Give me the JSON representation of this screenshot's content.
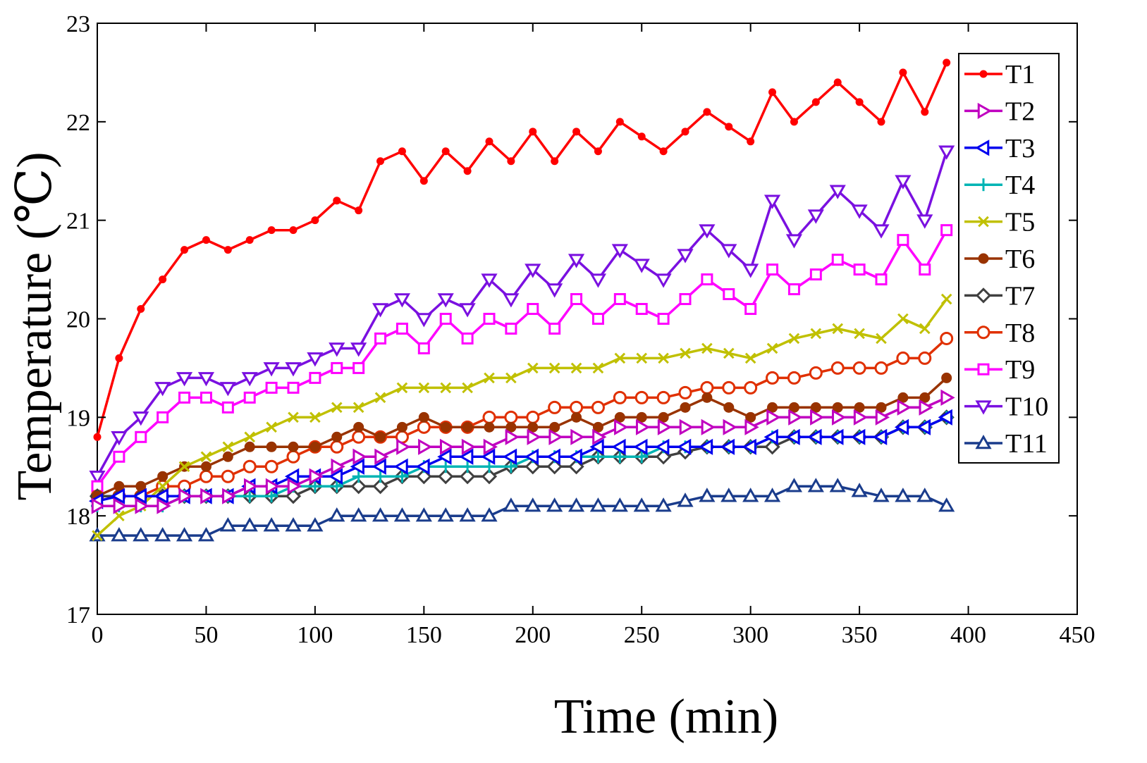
{
  "chart_data": {
    "type": "line",
    "title": "",
    "xlabel": "Time (min)",
    "ylabel": "Temperature (℃)",
    "xlim": [
      0,
      450
    ],
    "ylim": [
      17,
      23
    ],
    "x_ticks": [
      "0",
      "50",
      "100",
      "150",
      "200",
      "250",
      "300",
      "350",
      "400",
      "450"
    ],
    "y_ticks": [
      "17",
      "18",
      "19",
      "20",
      "21",
      "22",
      "23"
    ],
    "grid": false,
    "legend_position": "top-right",
    "x": [
      0,
      10,
      20,
      30,
      40,
      50,
      60,
      70,
      80,
      90,
      100,
      110,
      120,
      130,
      140,
      150,
      160,
      170,
      180,
      190,
      200,
      210,
      220,
      230,
      240,
      250,
      260,
      270,
      280,
      290,
      300,
      310,
      320,
      330,
      340,
      350,
      360,
      370,
      380,
      390
    ],
    "series": [
      {
        "name": "T1",
        "color": "#ff0000",
        "marker": "dot",
        "values": [
          18.8,
          19.6,
          20.1,
          20.4,
          20.7,
          20.8,
          20.7,
          20.8,
          20.9,
          20.9,
          21.0,
          21.2,
          21.1,
          21.6,
          21.7,
          21.4,
          21.7,
          21.5,
          21.8,
          21.6,
          21.9,
          21.6,
          21.9,
          21.7,
          22.0,
          21.85,
          21.7,
          21.9,
          22.1,
          21.95,
          21.8,
          22.3,
          22.0,
          22.2,
          22.4,
          22.2,
          22.0,
          22.5,
          22.1,
          22.6
        ]
      },
      {
        "name": "T2",
        "color": "#c000c0",
        "marker": "triangle-right",
        "values": [
          18.1,
          18.1,
          18.1,
          18.1,
          18.2,
          18.2,
          18.2,
          18.3,
          18.3,
          18.3,
          18.4,
          18.5,
          18.6,
          18.6,
          18.7,
          18.7,
          18.7,
          18.7,
          18.7,
          18.8,
          18.8,
          18.8,
          18.8,
          18.8,
          18.9,
          18.9,
          18.9,
          18.9,
          18.9,
          18.9,
          18.9,
          19.0,
          19.0,
          19.0,
          19.0,
          19.0,
          19.0,
          19.1,
          19.1,
          19.2
        ]
      },
      {
        "name": "T3",
        "color": "#0000ee",
        "marker": "triangle-left",
        "values": [
          18.15,
          18.2,
          18.2,
          18.2,
          18.2,
          18.2,
          18.2,
          18.3,
          18.3,
          18.4,
          18.4,
          18.4,
          18.5,
          18.5,
          18.5,
          18.5,
          18.6,
          18.6,
          18.6,
          18.6,
          18.6,
          18.6,
          18.6,
          18.7,
          18.7,
          18.7,
          18.7,
          18.7,
          18.7,
          18.7,
          18.7,
          18.8,
          18.8,
          18.8,
          18.8,
          18.8,
          18.8,
          18.9,
          18.9,
          19.0
        ]
      },
      {
        "name": "T4",
        "color": "#00b4b4",
        "marker": "plus",
        "values": [
          18.1,
          18.1,
          18.1,
          18.1,
          18.2,
          18.2,
          18.2,
          18.2,
          18.2,
          18.3,
          18.3,
          18.3,
          18.4,
          18.4,
          18.4,
          18.5,
          18.5,
          18.5,
          18.5,
          18.5,
          18.6,
          18.6,
          18.6,
          18.6,
          18.6,
          18.6,
          18.7,
          18.7,
          18.7,
          18.7,
          18.7,
          18.8,
          18.8,
          18.8,
          18.8,
          18.8,
          18.8,
          18.9,
          18.9,
          19.0
        ]
      },
      {
        "name": "T5",
        "color": "#c0c000",
        "marker": "x",
        "values": [
          17.8,
          18.0,
          18.1,
          18.3,
          18.5,
          18.6,
          18.7,
          18.8,
          18.9,
          19.0,
          19.0,
          19.1,
          19.1,
          19.2,
          19.3,
          19.3,
          19.3,
          19.3,
          19.4,
          19.4,
          19.5,
          19.5,
          19.5,
          19.5,
          19.6,
          19.6,
          19.6,
          19.65,
          19.7,
          19.65,
          19.6,
          19.7,
          19.8,
          19.85,
          19.9,
          19.85,
          19.8,
          20.0,
          19.9,
          20.2
        ]
      },
      {
        "name": "T6",
        "color": "#993300",
        "marker": "dot-large",
        "values": [
          18.2,
          18.3,
          18.3,
          18.4,
          18.5,
          18.5,
          18.6,
          18.7,
          18.7,
          18.7,
          18.7,
          18.8,
          18.9,
          18.8,
          18.9,
          19.0,
          18.9,
          18.9,
          18.9,
          18.9,
          18.9,
          18.9,
          19.0,
          18.9,
          19.0,
          19.0,
          19.0,
          19.1,
          19.2,
          19.1,
          19.0,
          19.1,
          19.1,
          19.1,
          19.1,
          19.1,
          19.1,
          19.2,
          19.2,
          19.4
        ]
      },
      {
        "name": "T7",
        "color": "#404040",
        "marker": "diamond",
        "values": [
          18.2,
          18.2,
          18.2,
          18.2,
          18.2,
          18.2,
          18.2,
          18.2,
          18.2,
          18.2,
          18.3,
          18.3,
          18.3,
          18.3,
          18.4,
          18.4,
          18.4,
          18.4,
          18.4,
          18.5,
          18.5,
          18.5,
          18.5,
          18.6,
          18.6,
          18.6,
          18.6,
          18.65,
          18.7,
          18.7,
          18.7,
          18.7,
          18.8,
          18.8,
          18.8,
          18.8,
          18.8,
          18.9,
          18.9,
          19.0
        ]
      },
      {
        "name": "T8",
        "color": "#e03000",
        "marker": "circle",
        "values": [
          18.2,
          18.2,
          18.2,
          18.3,
          18.3,
          18.4,
          18.4,
          18.5,
          18.5,
          18.6,
          18.7,
          18.7,
          18.8,
          18.8,
          18.8,
          18.9,
          18.9,
          18.9,
          19.0,
          19.0,
          19.0,
          19.1,
          19.1,
          19.1,
          19.2,
          19.2,
          19.2,
          19.25,
          19.3,
          19.3,
          19.3,
          19.4,
          19.4,
          19.45,
          19.5,
          19.5,
          19.5,
          19.6,
          19.6,
          19.8
        ]
      },
      {
        "name": "T9",
        "color": "#ff00ff",
        "marker": "square",
        "values": [
          18.3,
          18.6,
          18.8,
          19.0,
          19.2,
          19.2,
          19.1,
          19.2,
          19.3,
          19.3,
          19.4,
          19.5,
          19.5,
          19.8,
          19.9,
          19.7,
          20.0,
          19.8,
          20.0,
          19.9,
          20.1,
          19.9,
          20.2,
          20.0,
          20.2,
          20.1,
          20.0,
          20.2,
          20.4,
          20.25,
          20.1,
          20.5,
          20.3,
          20.45,
          20.6,
          20.5,
          20.4,
          20.8,
          20.5,
          20.9
        ]
      },
      {
        "name": "T10",
        "color": "#7a10e0",
        "marker": "triangle-down",
        "values": [
          18.4,
          18.8,
          19.0,
          19.3,
          19.4,
          19.4,
          19.3,
          19.4,
          19.5,
          19.5,
          19.6,
          19.7,
          19.7,
          20.1,
          20.2,
          20.0,
          20.2,
          20.1,
          20.4,
          20.2,
          20.5,
          20.3,
          20.6,
          20.4,
          20.7,
          20.55,
          20.4,
          20.65,
          20.9,
          20.7,
          20.5,
          21.2,
          20.8,
          21.05,
          21.3,
          21.1,
          20.9,
          21.4,
          21.0,
          21.7
        ]
      },
      {
        "name": "T11",
        "color": "#1a3c8c",
        "marker": "triangle-up",
        "values": [
          17.8,
          17.8,
          17.8,
          17.8,
          17.8,
          17.8,
          17.9,
          17.9,
          17.9,
          17.9,
          17.9,
          18.0,
          18.0,
          18.0,
          18.0,
          18.0,
          18.0,
          18.0,
          18.0,
          18.1,
          18.1,
          18.1,
          18.1,
          18.1,
          18.1,
          18.1,
          18.1,
          18.15,
          18.2,
          18.2,
          18.2,
          18.2,
          18.3,
          18.3,
          18.3,
          18.25,
          18.2,
          18.2,
          18.2,
          18.1
        ]
      }
    ]
  }
}
